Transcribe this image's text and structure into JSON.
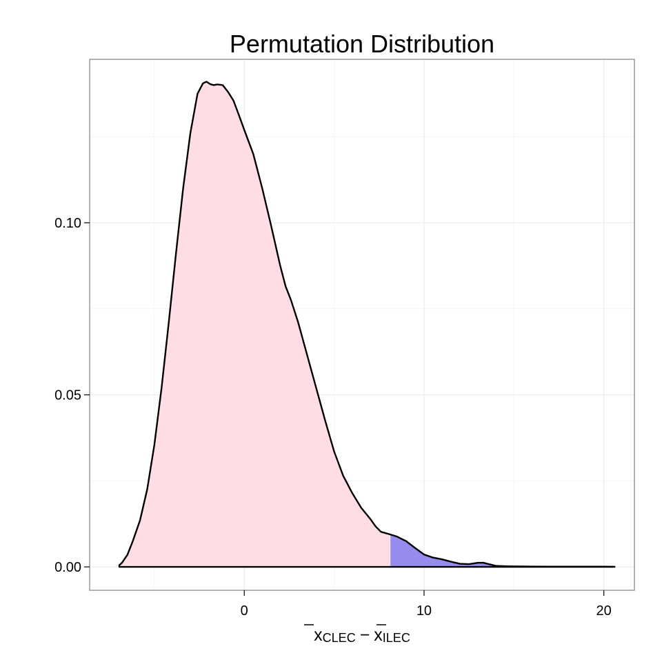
{
  "chart_data": {
    "type": "area",
    "title": "Permutation Distribution",
    "xlabel": {
      "first_symbol": "x",
      "first_subscript": "CLEC",
      "operator": "−",
      "second_symbol": "x",
      "second_subscript": "ILEC"
    },
    "ylabel": "",
    "xlim": [
      -8.6,
      21.7
    ],
    "ylim": [
      -0.0068,
      0.1475
    ],
    "x_ticks": [
      0,
      10,
      20
    ],
    "x_tick_labels": [
      "0",
      "10",
      "20"
    ],
    "y_ticks": [
      0.0,
      0.05,
      0.1
    ],
    "y_tick_labels": [
      "0.00",
      "0.05",
      "0.10"
    ],
    "grid": true,
    "legend": "none",
    "observed_cutoff": 8.13,
    "colors": {
      "lower_fill": "#ffdde5",
      "upper_fill": "#968ced",
      "line": "#000000",
      "panel_border": "#7f7f7f",
      "grid_major": "#ebebeb",
      "grid_minor": "#f5f5f5"
    },
    "series": [
      {
        "x": [
          -6.95,
          -6.8,
          -6.5,
          -6.2,
          -5.8,
          -5.4,
          -5.0,
          -4.6,
          -4.2,
          -3.8,
          -3.4,
          -3.0,
          -2.6,
          -2.3,
          -2.1,
          -1.9,
          -1.7,
          -1.5,
          -1.2,
          -0.9,
          -0.6,
          -0.3,
          0.0,
          0.5,
          1.0,
          1.5,
          2.0,
          2.3,
          2.6,
          3.0,
          3.5,
          4.0,
          4.5,
          5.0,
          5.5,
          6.0,
          6.5,
          7.0,
          7.3,
          7.6,
          8.13,
          8.5,
          9.0,
          9.5,
          10.0,
          10.5,
          11.0,
          11.5,
          12.0,
          12.5,
          13.0,
          13.3,
          13.6,
          14.0,
          14.5,
          15.0,
          16.0,
          17.0,
          18.0,
          19.0,
          20.0,
          20.6
        ],
        "y": [
          0.0005,
          0.0012,
          0.0035,
          0.0075,
          0.0135,
          0.0225,
          0.0355,
          0.052,
          0.071,
          0.091,
          0.11,
          0.126,
          0.1375,
          0.1405,
          0.141,
          0.1403,
          0.14,
          0.1402,
          0.14,
          0.138,
          0.1355,
          0.1313,
          0.127,
          0.12,
          0.11,
          0.099,
          0.0875,
          0.0815,
          0.0775,
          0.071,
          0.0615,
          0.052,
          0.0425,
          0.0335,
          0.0265,
          0.0215,
          0.0172,
          0.014,
          0.0118,
          0.0102,
          0.0094,
          0.0088,
          0.0075,
          0.0055,
          0.0036,
          0.0027,
          0.0022,
          0.0015,
          0.0009,
          0.0008,
          0.0012,
          0.0012,
          0.0008,
          0.0003,
          0.0002,
          0.00015,
          0.0001,
          8e-05,
          8e-05,
          8e-05,
          8e-05,
          5e-05
        ]
      }
    ]
  }
}
